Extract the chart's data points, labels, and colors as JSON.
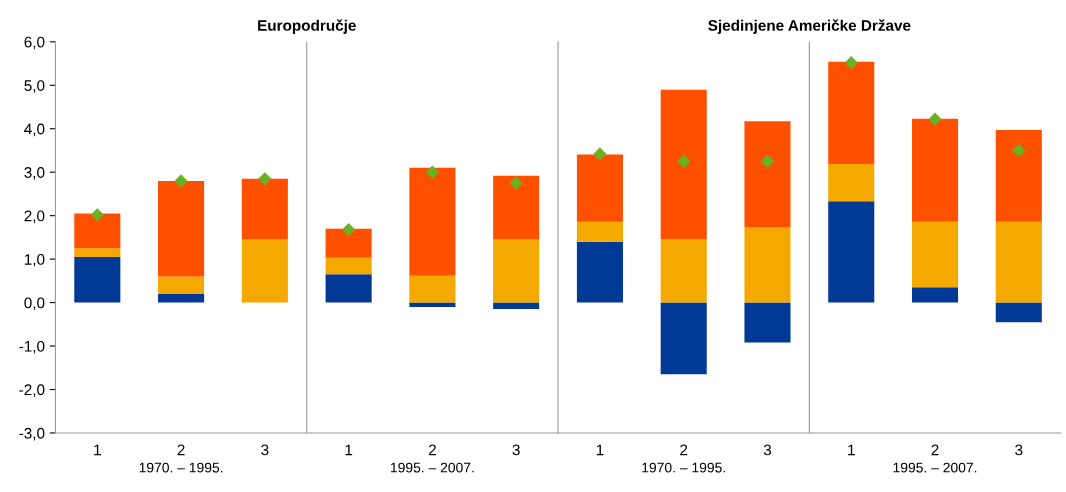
{
  "chart_data": [
    {
      "type": "bar",
      "title": "Europodručje",
      "stacked": true,
      "categories": [
        "1",
        "2",
        "3",
        "1",
        "2",
        "3"
      ],
      "ylim": [
        -3,
        6
      ],
      "yticks": [
        {
          "value": -3,
          "label": "-3,0"
        },
        {
          "value": -2,
          "label": "-2,0"
        },
        {
          "value": -1,
          "label": "-1,0"
        },
        {
          "value": 0,
          "label": "0,0"
        },
        {
          "value": 1,
          "label": "1,0"
        },
        {
          "value": 2,
          "label": "2,0"
        },
        {
          "value": 3,
          "label": "3,0"
        },
        {
          "value": 4,
          "label": "4,0"
        },
        {
          "value": 5,
          "label": "5,0"
        },
        {
          "value": 6,
          "label": "6,0"
        }
      ],
      "grid": false,
      "legend": false,
      "marker": "diamond",
      "annotations": [
        "1970. – 1995.",
        "1995. – 2007."
      ],
      "series": [
        {
          "color": "#003a96",
          "values": [
            1.05,
            0.2,
            0.0,
            0.65,
            -0.1,
            -0.15
          ]
        },
        {
          "color": "#f5a800",
          "values": [
            0.2,
            0.4,
            1.45,
            0.38,
            0.62,
            1.45
          ]
        },
        {
          "color": "#ff5000",
          "values": [
            0.8,
            2.2,
            1.4,
            0.67,
            2.48,
            1.47
          ]
        },
        {
          "type": "scatter",
          "color": "#6ab023",
          "values": [
            2.02,
            2.8,
            2.85,
            1.68,
            3.0,
            2.75
          ]
        }
      ]
    },
    {
      "type": "bar",
      "title": "Sjedinjene Američke Države",
      "stacked": true,
      "categories": [
        "1",
        "2",
        "3",
        "1",
        "2",
        "3"
      ],
      "ylim": [
        -3,
        6
      ],
      "tick_labels": "x",
      "grid": false,
      "legend": false,
      "marker": "diamond",
      "annotations": [
        "1970. – 1995.",
        "1995. – 2007."
      ],
      "series": [
        {
          "color": "#003a96",
          "values": [
            1.4,
            -1.65,
            -0.92,
            2.33,
            0.35,
            -0.45
          ]
        },
        {
          "color": "#f5a800",
          "values": [
            0.46,
            1.46,
            1.73,
            0.86,
            1.51,
            1.86
          ]
        },
        {
          "color": "#ff5000",
          "values": [
            1.55,
            3.44,
            2.44,
            2.35,
            2.37,
            2.11
          ]
        },
        {
          "type": "scatter",
          "color": "#6ab023",
          "values": [
            3.42,
            3.25,
            3.25,
            5.52,
            4.22,
            3.5
          ]
        }
      ]
    }
  ]
}
